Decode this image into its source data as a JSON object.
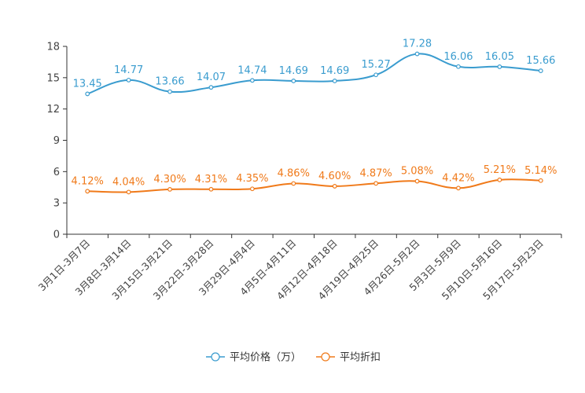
{
  "chart_data": {
    "type": "line",
    "categories": [
      "3月1日-3月7日",
      "3月8日-3月14日",
      "3月15日-3月21日",
      "3月22日-3月28日",
      "3月29日-4月4日",
      "4月5日-4月11日",
      "4月12日-4月18日",
      "4月19日-4月25日",
      "4月26日-5月2日",
      "5月3日-5月9日",
      "5月10日-5月16日",
      "5月17日-5月23日"
    ],
    "series": [
      {
        "name": "平均价格（万）",
        "color": "#3a9ccf",
        "values": [
          13.45,
          14.77,
          13.66,
          14.07,
          14.74,
          14.69,
          14.69,
          15.27,
          17.28,
          16.06,
          16.05,
          15.66
        ],
        "labels": [
          "13.45",
          "14.77",
          "13.66",
          "14.07",
          "14.74",
          "14.69",
          "14.69",
          "15.27",
          "17.28",
          "16.06",
          "16.05",
          "15.66"
        ]
      },
      {
        "name": "平均折扣",
        "color": "#f07a1a",
        "values": [
          4.12,
          4.04,
          4.3,
          4.31,
          4.35,
          4.86,
          4.6,
          4.87,
          5.08,
          4.42,
          5.21,
          5.14
        ],
        "labels": [
          "4.12%",
          "4.04%",
          "4.30%",
          "4.31%",
          "4.35%",
          "4.86%",
          "4.60%",
          "4.87%",
          "5.08%",
          "4.42%",
          "5.21%",
          "5.14%"
        ]
      }
    ],
    "ylim": [
      0,
      18
    ],
    "yticks": [
      0,
      3,
      6,
      9,
      12,
      15,
      18
    ],
    "title": "",
    "xlabel": "",
    "ylabel": "",
    "legend": "bottom-center",
    "grid": false
  }
}
